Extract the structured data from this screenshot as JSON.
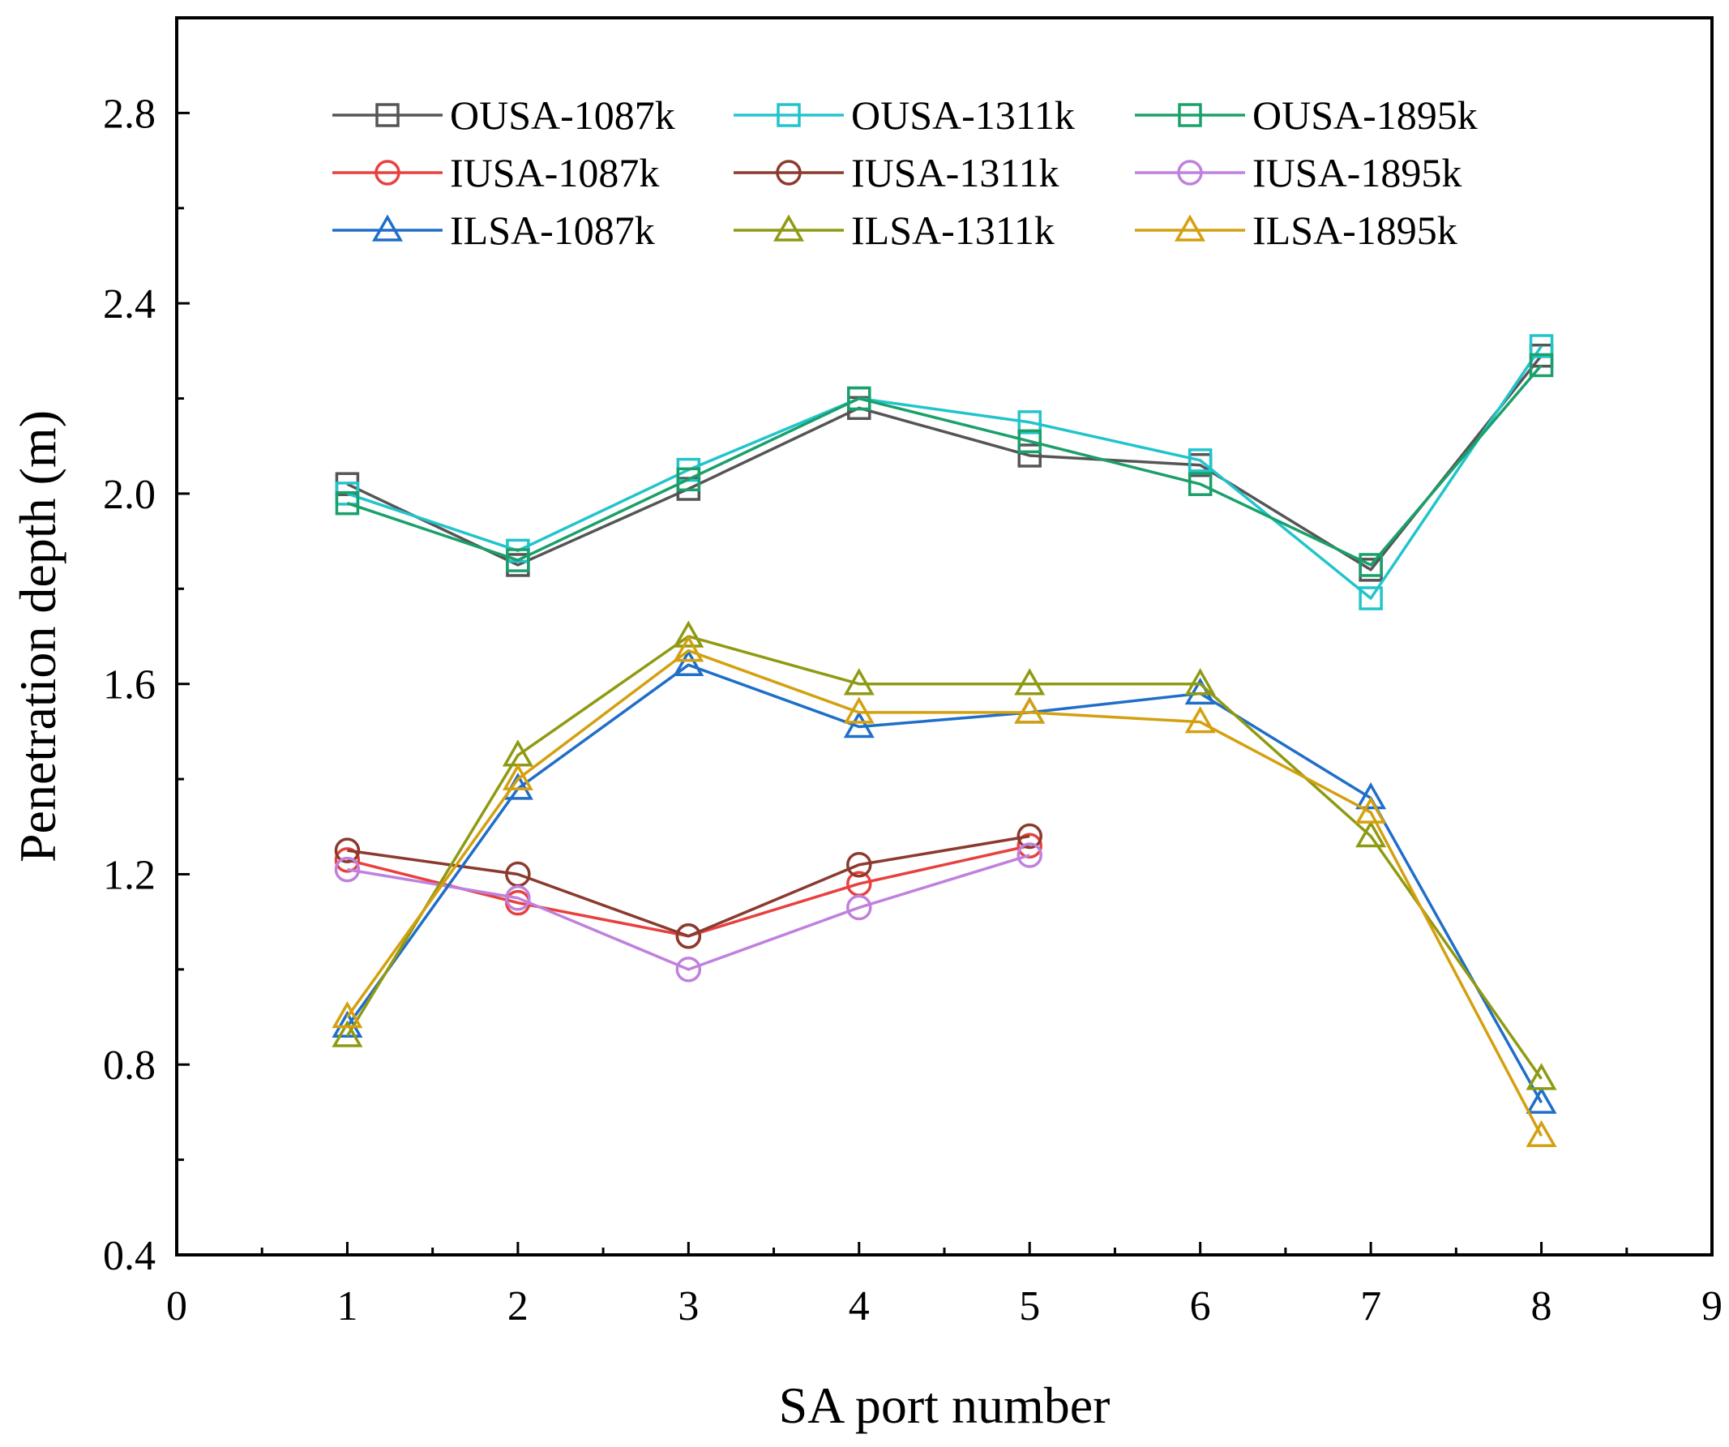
{
  "chart_data": {
    "type": "line",
    "title": "",
    "xlabel": "SA port number",
    "ylabel": "Penetration depth (m)",
    "xlim": [
      0,
      9
    ],
    "ylim": [
      0.4,
      3.0
    ],
    "xticks": [
      0,
      1,
      2,
      3,
      4,
      5,
      6,
      7,
      8,
      9
    ],
    "yticks": [
      0.4,
      0.8,
      1.2,
      1.6,
      2.0,
      2.4,
      2.8
    ],
    "xtick_labels": [
      "0",
      "1",
      "2",
      "3",
      "4",
      "5",
      "6",
      "7",
      "8",
      "9"
    ],
    "ytick_labels": [
      "0.4",
      "0.8",
      "1.2",
      "1.6",
      "2.0",
      "2.4",
      "2.8"
    ],
    "grid": false,
    "legend_position": "top",
    "series": [
      {
        "name": "OUSA-1087k",
        "color": "#555555",
        "marker": "square",
        "x": [
          1,
          2,
          3,
          4,
          5,
          6,
          7,
          8
        ],
        "y": [
          2.02,
          1.85,
          2.01,
          2.18,
          2.08,
          2.06,
          1.84,
          2.29
        ]
      },
      {
        "name": "OUSA-1311k",
        "color": "#22c4cc",
        "marker": "square",
        "x": [
          1,
          2,
          3,
          4,
          5,
          6,
          7,
          8
        ],
        "y": [
          2.0,
          1.88,
          2.05,
          2.2,
          2.15,
          2.07,
          1.78,
          2.31
        ]
      },
      {
        "name": "OUSA-1895k",
        "color": "#1aa06a",
        "marker": "square",
        "x": [
          1,
          2,
          3,
          4,
          5,
          6,
          7,
          8
        ],
        "y": [
          1.98,
          1.86,
          2.03,
          2.2,
          2.11,
          2.02,
          1.85,
          2.27
        ]
      },
      {
        "name": "IUSA-1087k",
        "color": "#e8403e",
        "marker": "circle",
        "x": [
          1,
          2,
          3,
          4,
          5
        ],
        "y": [
          1.23,
          1.14,
          1.07,
          1.18,
          1.26
        ]
      },
      {
        "name": "IUSA-1311k",
        "color": "#8b3a2e",
        "marker": "circle",
        "x": [
          1,
          2,
          3,
          4,
          5
        ],
        "y": [
          1.25,
          1.2,
          1.07,
          1.22,
          1.28
        ]
      },
      {
        "name": "IUSA-1895k",
        "color": "#c080dd",
        "marker": "circle",
        "x": [
          1,
          2,
          3,
          4,
          5
        ],
        "y": [
          1.21,
          1.15,
          1.0,
          1.13,
          1.24
        ]
      },
      {
        "name": "ILSA-1087k",
        "color": "#1f6ec8",
        "marker": "triangle",
        "x": [
          1,
          2,
          3,
          4,
          5,
          6,
          7,
          8
        ],
        "y": [
          0.88,
          1.38,
          1.64,
          1.51,
          1.54,
          1.58,
          1.36,
          0.72
        ]
      },
      {
        "name": "ILSA-1311k",
        "color": "#8f9a12",
        "marker": "triangle",
        "x": [
          1,
          2,
          3,
          4,
          5,
          6,
          7,
          8
        ],
        "y": [
          0.86,
          1.45,
          1.7,
          1.6,
          1.6,
          1.6,
          1.28,
          0.77
        ]
      },
      {
        "name": "ILSA-1895k",
        "color": "#d4a010",
        "marker": "triangle",
        "x": [
          1,
          2,
          3,
          4,
          5,
          6,
          7,
          8
        ],
        "y": [
          0.9,
          1.4,
          1.67,
          1.54,
          1.54,
          1.52,
          1.33,
          0.65
        ]
      }
    ]
  }
}
